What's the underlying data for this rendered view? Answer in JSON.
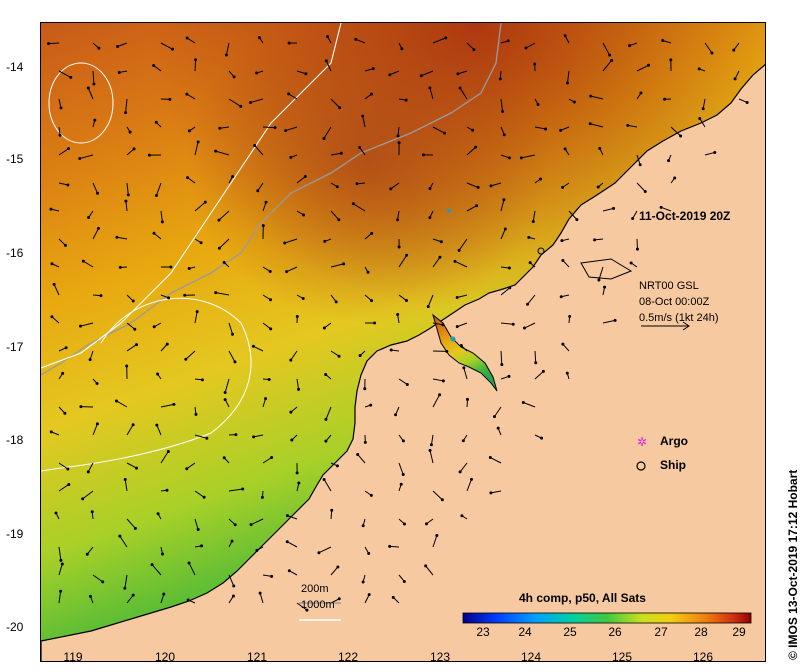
{
  "map": {
    "date_label": "11-Oct-2019 20Z",
    "current_info": {
      "line1": "NRT00 GSL",
      "line2": "08-Oct 00:00Z",
      "line3": "0.5m/s (1kt 24h)"
    },
    "legend": {
      "argo": "Argo",
      "ship": "Ship"
    },
    "depth_contours": {
      "shallow": "200m",
      "deep": "1000m"
    },
    "colorbar": {
      "title": "4h comp, p50, All Sats",
      "ticks": [
        "23",
        "24",
        "25",
        "26",
        "27",
        "28",
        "29"
      ]
    },
    "y_axis": {
      "ticks": [
        "-14",
        "-15",
        "-16",
        "-17",
        "-18",
        "-19",
        "-20"
      ]
    },
    "x_axis": {
      "ticks": [
        "119",
        "120",
        "121",
        "122",
        "123",
        "124",
        "125",
        "126"
      ]
    },
    "credit": "© IMOS 13-Oct-2019 17:12 Hobart",
    "colors": {
      "land": "#f7c9a0",
      "warm": "#c0421a",
      "mid": "#e8a810",
      "cool": "#2fb84a"
    }
  }
}
